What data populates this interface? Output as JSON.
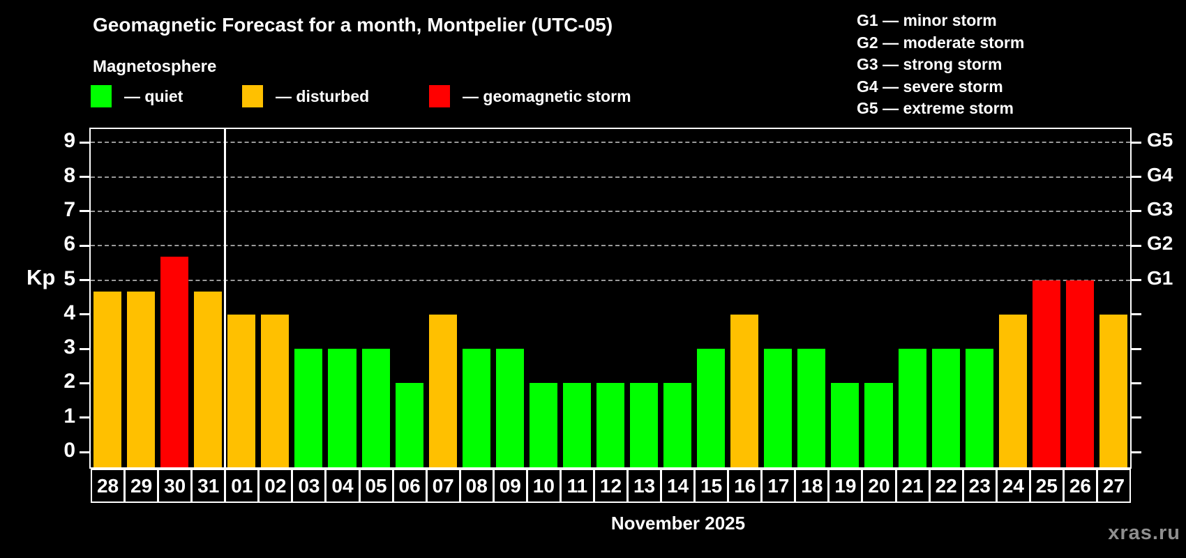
{
  "page": {
    "title": "Geomagnetic Forecast for a month, Montpelier (UTC-05)",
    "subtitle": "Magnetosphere",
    "month_label": "November 2025",
    "watermark": "xras.ru"
  },
  "legend": {
    "items": [
      {
        "name": "quiet",
        "label": "— quiet",
        "color": "#00ff00"
      },
      {
        "name": "disturbed",
        "label": "— disturbed",
        "color": "#ffc000"
      },
      {
        "name": "storm",
        "label": "— geomagnetic storm",
        "color": "#ff0000"
      }
    ]
  },
  "g_scale_legend": {
    "items": [
      {
        "code": "G1",
        "label": "G1 — minor storm"
      },
      {
        "code": "G2",
        "label": "G2 — moderate storm"
      },
      {
        "code": "G3",
        "label": "G3 — strong storm"
      },
      {
        "code": "G4",
        "label": "G4 — severe storm"
      },
      {
        "code": "G5",
        "label": "G5 — extreme storm"
      }
    ]
  },
  "axes": {
    "y_left_label": "Kp",
    "y_ticks": [
      0,
      1,
      2,
      3,
      4,
      5,
      6,
      7,
      8,
      9
    ],
    "y_right_g_labels": [
      {
        "kp": 5,
        "label": "G1"
      },
      {
        "kp": 6,
        "label": "G2"
      },
      {
        "kp": 7,
        "label": "G3"
      },
      {
        "kp": 8,
        "label": "G4"
      },
      {
        "kp": 9,
        "label": "G5"
      }
    ]
  },
  "chart_data": {
    "type": "bar",
    "title": "Geomagnetic Forecast for a month, Montpelier (UTC-05)",
    "xlabel": "November 2025",
    "ylabel": "Kp",
    "ylim": [
      0,
      9.4
    ],
    "grid": "dashed horizontal lines at Kp 5-9 only",
    "legend_position": "top",
    "grid_kp_levels": [
      5,
      6,
      7,
      8,
      9
    ],
    "month_divider_after_index": 3,
    "categories": [
      "28",
      "29",
      "30",
      "31",
      "01",
      "02",
      "03",
      "04",
      "05",
      "06",
      "07",
      "08",
      "09",
      "10",
      "11",
      "12",
      "13",
      "14",
      "15",
      "16",
      "17",
      "18",
      "19",
      "20",
      "21",
      "22",
      "23",
      "24",
      "25",
      "26",
      "27"
    ],
    "values": [
      4.67,
      4.67,
      5.67,
      4.67,
      4,
      4,
      3,
      3,
      3,
      2,
      4,
      3,
      3,
      2,
      2,
      2,
      2,
      2,
      3,
      4,
      3,
      3,
      2,
      2,
      3,
      3,
      3,
      4,
      5,
      5,
      4
    ],
    "statuses": [
      "disturbed",
      "disturbed",
      "storm",
      "disturbed",
      "disturbed",
      "disturbed",
      "quiet",
      "quiet",
      "quiet",
      "quiet",
      "disturbed",
      "quiet",
      "quiet",
      "quiet",
      "quiet",
      "quiet",
      "quiet",
      "quiet",
      "quiet",
      "disturbed",
      "quiet",
      "quiet",
      "quiet",
      "quiet",
      "quiet",
      "quiet",
      "quiet",
      "disturbed",
      "storm",
      "storm",
      "disturbed"
    ],
    "status_colors": {
      "quiet": "#00ff00",
      "disturbed": "#ffc000",
      "storm": "#ff0000"
    }
  }
}
